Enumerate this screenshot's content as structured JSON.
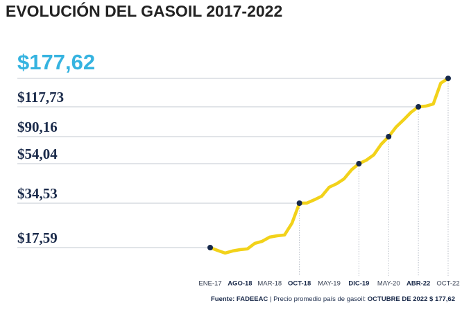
{
  "chart_data": {
    "type": "line",
    "title": "EVOLUCIÓN DEL GASOIL 2017-2022",
    "categories": [
      "ENE-17",
      null,
      null,
      null,
      "AGO-18",
      null,
      null,
      null,
      "MAR-18",
      null,
      null,
      null,
      "OCT-18",
      null,
      null,
      null,
      "MAY-19",
      null,
      null,
      null,
      "DIC-19",
      null,
      null,
      null,
      "MAY-20",
      null,
      null,
      null,
      "ABR-22",
      null,
      null,
      null,
      "OCT-22"
    ],
    "values": [
      17.59,
      16.5,
      15.5,
      16.3,
      16.8,
      17.1,
      19.2,
      20.0,
      21.6,
      22.1,
      22.4,
      26.9,
      34.53,
      34.6,
      36.2,
      38.0,
      42.4,
      44.1,
      46.5,
      51.0,
      54.04,
      58.7,
      65.8,
      80.0,
      90.16,
      99.1,
      105.6,
      112.6,
      117.73,
      119.2,
      123.6,
      167.4,
      177.62
    ],
    "color": "#f2d21a",
    "marker_color": "#16284a",
    "yticks": [
      {
        "value": 17.59,
        "label": "$17,59"
      },
      {
        "value": 34.53,
        "label": "$34,53"
      },
      {
        "value": 54.04,
        "label": "$54,04"
      },
      {
        "value": 90.16,
        "label": "$90,16"
      },
      {
        "value": 117.73,
        "label": "$117,73"
      },
      {
        "value": 177.62,
        "label": "$177,62"
      }
    ],
    "grid": true,
    "source": {
      "label": "Fuente: FADEEAC",
      "text": "| Precio promedio país de gasoil:",
      "highlight": "OCTUBRE DE 2022 $ 177,62"
    }
  }
}
